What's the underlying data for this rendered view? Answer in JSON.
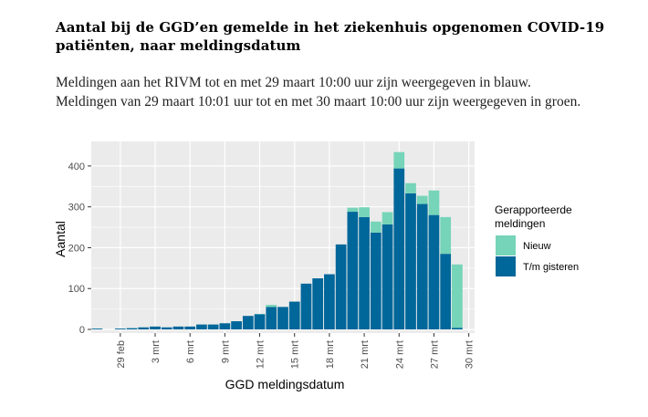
{
  "header": {
    "title": "Aantal bij de GGD’en gemelde in het ziekenhuis opgenomen COVID-19 patiënten, naar meldingsdatum",
    "subtitle_line1": "Meldingen aan het RIVM tot en met 29 maart 10:00 uur zijn weergegeven in blauw.",
    "subtitle_line2": "Meldingen van 29 maart 10:01 uur tot en met 30 maart 10:00 uur zijn weergegeven in groen."
  },
  "colors": {
    "nieuw": "#76d4b8",
    "tm_gisteren": "#00679a",
    "panel_bg": "#ebebeb",
    "grid": "#ffffff"
  },
  "chart_data": {
    "type": "bar",
    "stacked": true,
    "title": "",
    "xlabel": "GGD meldingsdatum",
    "ylabel": "Aantal",
    "ylim": [
      0,
      440
    ],
    "yticks": [
      0,
      100,
      200,
      300,
      400
    ],
    "x_tick_labels": [
      "29 feb",
      "3 mrt",
      "6 mrt",
      "9 mrt",
      "12 mrt",
      "15 mrt",
      "18 mrt",
      "21 mrt",
      "24 mrt",
      "27 mrt",
      "30 mrt"
    ],
    "x_tick_day_index": [
      2,
      5,
      8,
      11,
      14,
      17,
      20,
      23,
      26,
      29,
      32
    ],
    "categories": [
      "27 feb",
      "28 feb",
      "29 feb",
      "1 mrt",
      "2 mrt",
      "3 mrt",
      "4 mrt",
      "5 mrt",
      "6 mrt",
      "7 mrt",
      "8 mrt",
      "9 mrt",
      "10 mrt",
      "11 mrt",
      "12 mrt",
      "13 mrt",
      "14 mrt",
      "15 mrt",
      "16 mrt",
      "17 mrt",
      "18 mrt",
      "19 mrt",
      "20 mrt",
      "21 mrt",
      "22 mrt",
      "23 mrt",
      "24 mrt",
      "25 mrt",
      "26 mrt",
      "27 mrt",
      "28 mrt",
      "29 mrt",
      "30 mrt"
    ],
    "series": [
      {
        "name": "T/m gisteren",
        "values": [
          2,
          0,
          2,
          3,
          5,
          7,
          5,
          7,
          7,
          12,
          12,
          15,
          20,
          33,
          37,
          55,
          55,
          68,
          112,
          125,
          135,
          208,
          288,
          275,
          237,
          257,
          394,
          333,
          307,
          280,
          185,
          4,
          0
        ]
      },
      {
        "name": "Nieuw",
        "values": [
          0,
          0,
          0,
          0,
          0,
          0,
          0,
          0,
          0,
          0,
          0,
          0,
          0,
          0,
          1,
          5,
          0,
          0,
          0,
          0,
          0,
          0,
          10,
          24,
          27,
          30,
          40,
          25,
          20,
          60,
          90,
          155,
          0
        ]
      }
    ],
    "legend": {
      "title": "Gerapporteerde meldingen",
      "title_line1": "Gerapporteerde",
      "title_line2": "meldingen",
      "position": "right",
      "entries": [
        "Nieuw",
        "T/m gisteren"
      ]
    }
  }
}
